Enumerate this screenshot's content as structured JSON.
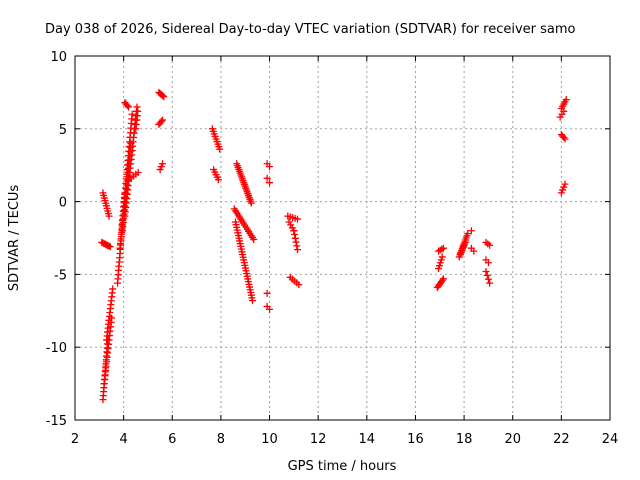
{
  "chart_data": {
    "type": "scatter",
    "title": "Day 038 of 2026, Sidereal Day-to-day VTEC variation (SDTVAR) for receiver samo",
    "xlabel": "GPS time / hours",
    "ylabel": "SDTVAR / TECUs",
    "xlim": [
      2,
      24
    ],
    "ylim": [
      -15,
      10
    ],
    "xticks": [
      "2",
      "4",
      "6",
      "8",
      "10",
      "12",
      "14",
      "16",
      "18",
      "20",
      "22",
      "24"
    ],
    "yticks": [
      "-15",
      "-10",
      "-5",
      "0",
      "5",
      "10"
    ],
    "grid": true,
    "marker": "+",
    "color": "#ff0000",
    "segments": [
      {
        "x0": 3.15,
        "x1": 3.4,
        "y0": 0.6,
        "y1": -1.0,
        "n": 10
      },
      {
        "x0": 3.1,
        "x1": 3.45,
        "y0": -2.8,
        "y1": -3.1,
        "n": 8
      },
      {
        "x0": 3.15,
        "x1": 3.35,
        "y0": -13.6,
        "y1": -9.5,
        "n": 16
      },
      {
        "x0": 3.2,
        "x1": 3.5,
        "y0": -12.5,
        "y1": -8.0,
        "n": 16
      },
      {
        "x0": 3.3,
        "x1": 3.55,
        "y0": -9.5,
        "y1": -6.0,
        "n": 14
      },
      {
        "x0": 3.75,
        "x1": 4.05,
        "y0": -5.6,
        "y1": 0.5,
        "n": 22
      },
      {
        "x0": 3.85,
        "x1": 4.35,
        "y0": -3.2,
        "y1": 6.0,
        "n": 30
      },
      {
        "x0": 3.95,
        "x1": 4.3,
        "y0": -2.0,
        "y1": 4.0,
        "n": 22
      },
      {
        "x0": 4.05,
        "x1": 4.55,
        "y0": -1.0,
        "y1": 6.5,
        "n": 26
      },
      {
        "x0": 4.05,
        "x1": 4.2,
        "y0": 6.8,
        "y1": 6.5,
        "n": 4
      },
      {
        "x0": 4.5,
        "x1": 4.58,
        "y0": 5.0,
        "y1": 6.2,
        "n": 5
      },
      {
        "x0": 4.2,
        "x1": 4.6,
        "y0": 1.5,
        "y1": 2.0,
        "n": 5
      },
      {
        "x0": 5.45,
        "x1": 5.65,
        "y0": 7.5,
        "y1": 7.2,
        "n": 5
      },
      {
        "x0": 5.45,
        "x1": 5.6,
        "y0": 5.3,
        "y1": 5.6,
        "n": 4
      },
      {
        "x0": 5.5,
        "x1": 5.6,
        "y0": 2.2,
        "y1": 2.6,
        "n": 3
      },
      {
        "x0": 7.65,
        "x1": 7.95,
        "y0": 5.0,
        "y1": 3.6,
        "n": 9
      },
      {
        "x0": 7.7,
        "x1": 7.9,
        "y0": 2.2,
        "y1": 1.5,
        "n": 5
      },
      {
        "x0": 8.65,
        "x1": 9.25,
        "y0": 2.6,
        "y1": -0.1,
        "n": 22
      },
      {
        "x0": 8.55,
        "x1": 9.35,
        "y0": -0.5,
        "y1": -2.6,
        "n": 16
      },
      {
        "x0": 8.6,
        "x1": 9.3,
        "y0": -1.4,
        "y1": -6.8,
        "n": 30
      },
      {
        "x0": 9.9,
        "x1": 10.0,
        "y0": 2.6,
        "y1": 2.4,
        "n": 2
      },
      {
        "x0": 9.9,
        "x1": 10.0,
        "y0": 1.6,
        "y1": 1.3,
        "n": 2
      },
      {
        "x0": 9.9,
        "x1": 10.0,
        "y0": -6.3,
        "y1": -6.3,
        "n": 1
      },
      {
        "x0": 9.9,
        "x1": 10.0,
        "y0": -7.2,
        "y1": -7.4,
        "n": 2
      },
      {
        "x0": 10.75,
        "x1": 11.15,
        "y0": -1.0,
        "y1": -1.2,
        "n": 5
      },
      {
        "x0": 10.8,
        "x1": 11.0,
        "y0": -1.4,
        "y1": -2.0,
        "n": 4
      },
      {
        "x0": 11.0,
        "x1": 11.15,
        "y0": -2.0,
        "y1": -3.3,
        "n": 6
      },
      {
        "x0": 10.85,
        "x1": 11.2,
        "y0": -5.2,
        "y1": -5.7,
        "n": 5
      },
      {
        "x0": 16.9,
        "x1": 17.15,
        "y0": -5.9,
        "y1": -5.3,
        "n": 7
      },
      {
        "x0": 16.95,
        "x1": 17.1,
        "y0": -4.6,
        "y1": -3.8,
        "n": 5
      },
      {
        "x0": 16.95,
        "x1": 17.15,
        "y0": -3.4,
        "y1": -3.2,
        "n": 4
      },
      {
        "x0": 17.8,
        "x1": 18.15,
        "y0": -3.8,
        "y1": -2.2,
        "n": 12
      },
      {
        "x0": 17.85,
        "x1": 18.05,
        "y0": -3.6,
        "y1": -2.8,
        "n": 8
      },
      {
        "x0": 18.3,
        "x1": 18.4,
        "y0": -2.0,
        "y1": -2.0,
        "n": 1
      },
      {
        "x0": 18.3,
        "x1": 18.4,
        "y0": -3.2,
        "y1": -3.4,
        "n": 2
      },
      {
        "x0": 18.9,
        "x1": 19.05,
        "y0": -2.8,
        "y1": -3.0,
        "n": 3
      },
      {
        "x0": 18.9,
        "x1": 19.0,
        "y0": -4.0,
        "y1": -4.2,
        "n": 2
      },
      {
        "x0": 18.9,
        "x1": 19.05,
        "y0": -4.8,
        "y1": -5.6,
        "n": 4
      },
      {
        "x0": 22.0,
        "x1": 22.2,
        "y0": 6.4,
        "y1": 7.0,
        "n": 5
      },
      {
        "x0": 21.95,
        "x1": 22.1,
        "y0": 5.8,
        "y1": 6.2,
        "n": 3
      },
      {
        "x0": 22.0,
        "x1": 22.15,
        "y0": 4.6,
        "y1": 4.3,
        "n": 4
      },
      {
        "x0": 22.0,
        "x1": 22.15,
        "y0": 0.6,
        "y1": 1.2,
        "n": 4
      }
    ]
  }
}
